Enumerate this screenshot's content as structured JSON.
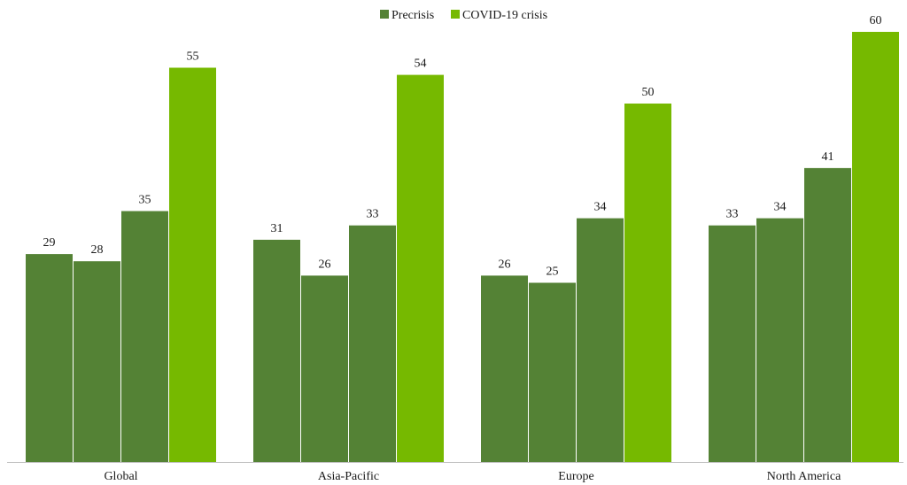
{
  "chart_data": {
    "type": "bar",
    "title": "",
    "xlabel": "",
    "ylabel": "",
    "ylim": [
      0,
      60
    ],
    "grid": false,
    "legend_position": "top-center",
    "categories": [
      "Global",
      "Asia-Pacific",
      "Europe",
      "North America"
    ],
    "bars": [
      {
        "category": "Global",
        "values": [
          29,
          28,
          35,
          55
        ]
      },
      {
        "category": "Asia-Pacific",
        "values": [
          31,
          26,
          33,
          54
        ]
      },
      {
        "category": "Europe",
        "values": [
          26,
          25,
          34,
          50
        ]
      },
      {
        "category": "North America",
        "values": [
          33,
          34,
          41,
          60
        ]
      }
    ],
    "bar_series_pattern": [
      "Precrisis",
      "Precrisis",
      "Precrisis",
      "COVID-19 crisis"
    ],
    "legend": [
      {
        "name": "Precrisis",
        "color": "#548235"
      },
      {
        "name": "COVID-19 crisis",
        "color": "#76b900"
      }
    ]
  }
}
